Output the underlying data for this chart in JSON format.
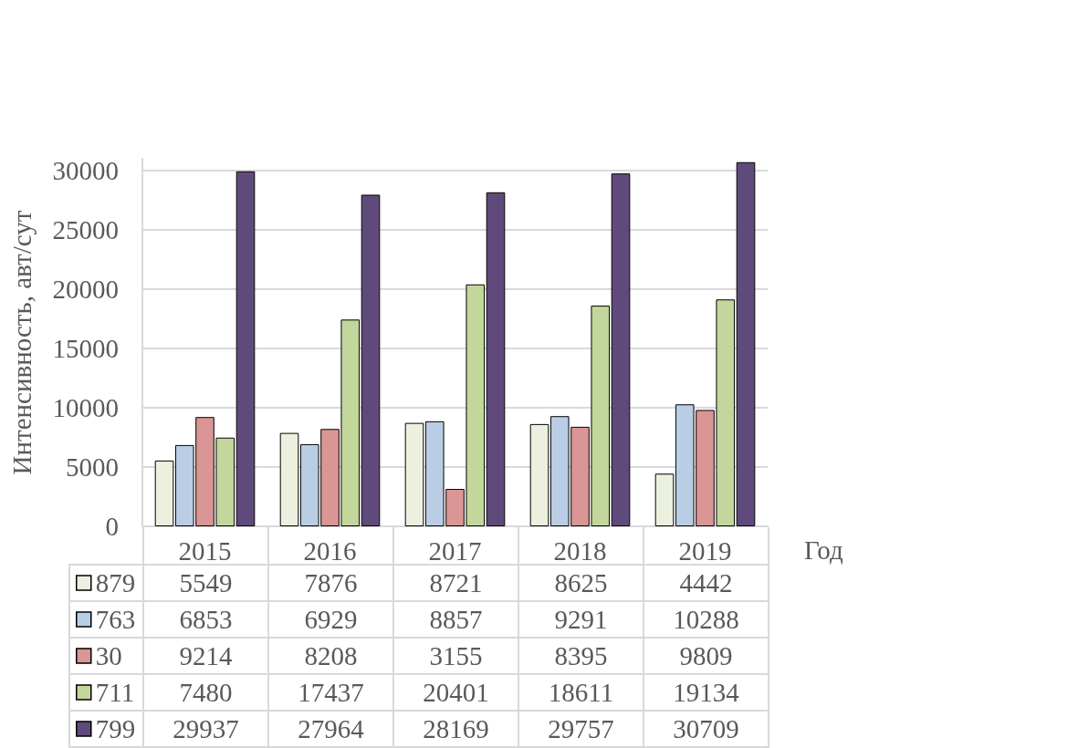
{
  "chart_data": {
    "type": "bar",
    "xlabel": "Год",
    "ylabel": "Интенсивность, авт/сут",
    "categories": [
      "2015",
      "2016",
      "2017",
      "2018",
      "2019"
    ],
    "series": [
      {
        "name": "879",
        "color": "#ebf1de",
        "values": [
          5549,
          7876,
          8721,
          8625,
          4442
        ]
      },
      {
        "name": "763",
        "color": "#b9cde5",
        "values": [
          6853,
          6929,
          8857,
          9291,
          10288
        ]
      },
      {
        "name": "30",
        "color": "#d99694",
        "values": [
          9214,
          8208,
          3155,
          8395,
          9809
        ]
      },
      {
        "name": "711",
        "color": "#c3d69b",
        "values": [
          7480,
          17437,
          20401,
          18611,
          19134
        ]
      },
      {
        "name": "799",
        "color": "#604a7b",
        "values": [
          29937,
          27964,
          28169,
          29757,
          30709
        ]
      }
    ],
    "ylim": [
      0,
      31000
    ],
    "yticks": [
      0,
      5000,
      10000,
      15000,
      20000,
      25000,
      30000
    ],
    "grid": "y",
    "legend": "bottom left",
    "data_labels": true
  }
}
